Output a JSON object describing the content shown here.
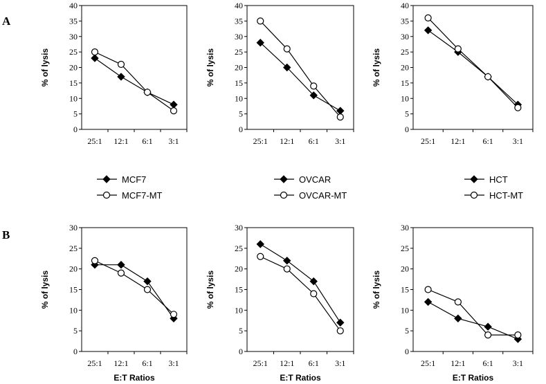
{
  "panel_labels": [
    "A",
    "B"
  ],
  "chart_data": [
    {
      "type": "line",
      "row": "A",
      "categories": [
        "25:1",
        "12:1",
        "6:1",
        "3:1"
      ],
      "ylabel": "% of lysis",
      "xlabel": "",
      "ylim": [
        0,
        40
      ],
      "yticks": [
        0,
        5,
        10,
        15,
        20,
        25,
        30,
        35,
        40
      ],
      "series": [
        {
          "name": "MCF7",
          "marker": "diamond",
          "values": [
            23,
            17,
            12,
            8
          ]
        },
        {
          "name": "MCF7-MT",
          "marker": "circle",
          "values": [
            25,
            21,
            12,
            6
          ]
        }
      ]
    },
    {
      "type": "line",
      "row": "A",
      "categories": [
        "25:1",
        "12:1",
        "6:1",
        "3:1"
      ],
      "ylabel": "% of lysis",
      "xlabel": "",
      "ylim": [
        0,
        40
      ],
      "yticks": [
        0,
        5,
        10,
        15,
        20,
        25,
        30,
        35,
        40
      ],
      "series": [
        {
          "name": "OVCAR",
          "marker": "diamond",
          "values": [
            28,
            20,
            11,
            6
          ]
        },
        {
          "name": "OVCAR-MT",
          "marker": "circle",
          "values": [
            35,
            26,
            14,
            4
          ]
        }
      ]
    },
    {
      "type": "line",
      "row": "A",
      "categories": [
        "25:1",
        "12:1",
        "6:1",
        "3:1"
      ],
      "ylabel": "% of lysis",
      "xlabel": "",
      "ylim": [
        0,
        40
      ],
      "yticks": [
        0,
        5,
        10,
        15,
        20,
        25,
        30,
        35,
        40
      ],
      "series": [
        {
          "name": "HCT",
          "marker": "diamond",
          "values": [
            32,
            25,
            17,
            8
          ]
        },
        {
          "name": "HCT-MT",
          "marker": "circle",
          "values": [
            36,
            26,
            17,
            7
          ]
        }
      ]
    },
    {
      "type": "line",
      "row": "B",
      "categories": [
        "25:1",
        "12:1",
        "6:1",
        "3:1"
      ],
      "ylabel": "% of lysis",
      "xlabel": "E:T Ratios",
      "ylim": [
        0,
        30
      ],
      "yticks": [
        0,
        5,
        10,
        15,
        20,
        25,
        30
      ],
      "series": [
        {
          "name": "MCF7",
          "marker": "diamond",
          "values": [
            21,
            21,
            17,
            8
          ]
        },
        {
          "name": "MCF7-MT",
          "marker": "circle",
          "values": [
            22,
            19,
            15,
            9
          ]
        }
      ]
    },
    {
      "type": "line",
      "row": "B",
      "categories": [
        "25:1",
        "12:1",
        "6:1",
        "3:1"
      ],
      "ylabel": "% of lysis",
      "xlabel": "E:T Ratios",
      "ylim": [
        0,
        30
      ],
      "yticks": [
        0,
        5,
        10,
        15,
        20,
        25,
        30
      ],
      "series": [
        {
          "name": "OVCAR",
          "marker": "diamond",
          "values": [
            26,
            22,
            17,
            7
          ]
        },
        {
          "name": "OVCAR-MT",
          "marker": "circle",
          "values": [
            23,
            20,
            14,
            5
          ]
        }
      ]
    },
    {
      "type": "line",
      "row": "B",
      "categories": [
        "25:1",
        "12:1",
        "6:1",
        "3:1"
      ],
      "ylabel": "% of lysis",
      "xlabel": "E:T Ratios",
      "ylim": [
        0,
        30
      ],
      "yticks": [
        0,
        5,
        10,
        15,
        20,
        25,
        30
      ],
      "series": [
        {
          "name": "HCT",
          "marker": "diamond",
          "values": [
            12,
            8,
            6,
            3
          ]
        },
        {
          "name": "HCT-MT",
          "marker": "circle",
          "values": [
            15,
            12,
            4,
            4
          ]
        }
      ]
    }
  ],
  "legends": [
    {
      "entries": [
        {
          "label": "MCF7",
          "marker": "diamond"
        },
        {
          "label": "MCF7-MT",
          "marker": "circle"
        }
      ]
    },
    {
      "entries": [
        {
          "label": "OVCAR",
          "marker": "diamond"
        },
        {
          "label": "OVCAR-MT",
          "marker": "circle"
        }
      ]
    },
    {
      "entries": [
        {
          "label": "HCT",
          "marker": "diamond"
        },
        {
          "label": "HCT-MT",
          "marker": "circle"
        }
      ]
    }
  ]
}
